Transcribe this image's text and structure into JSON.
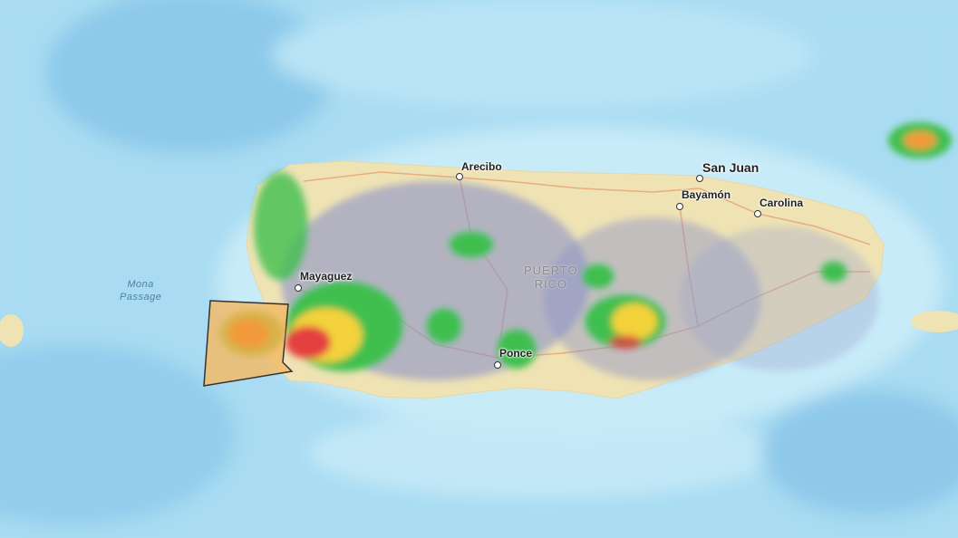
{
  "map": {
    "cities": [
      {
        "name": "San Juan",
        "major": true
      },
      {
        "name": "Arecibo"
      },
      {
        "name": "Bayamón"
      },
      {
        "name": "Carolina"
      },
      {
        "name": "Mayaguez"
      },
      {
        "name": "Ponce"
      }
    ],
    "region_label": [
      "PUERTO",
      "RICO"
    ],
    "water_label": [
      "Mona",
      "Passage"
    ],
    "colors": {
      "water": "#a9dcf2",
      "land": "#efe3b4",
      "road": "#e8a070",
      "radar_light": "#8c93c8",
      "radar_green": "#3fbf4f",
      "radar_yellow": "#f3d23a",
      "radar_orange": "#f29a3a",
      "radar_red": "#e44040",
      "warning_polygon_fill": "#f2bb6a"
    }
  }
}
